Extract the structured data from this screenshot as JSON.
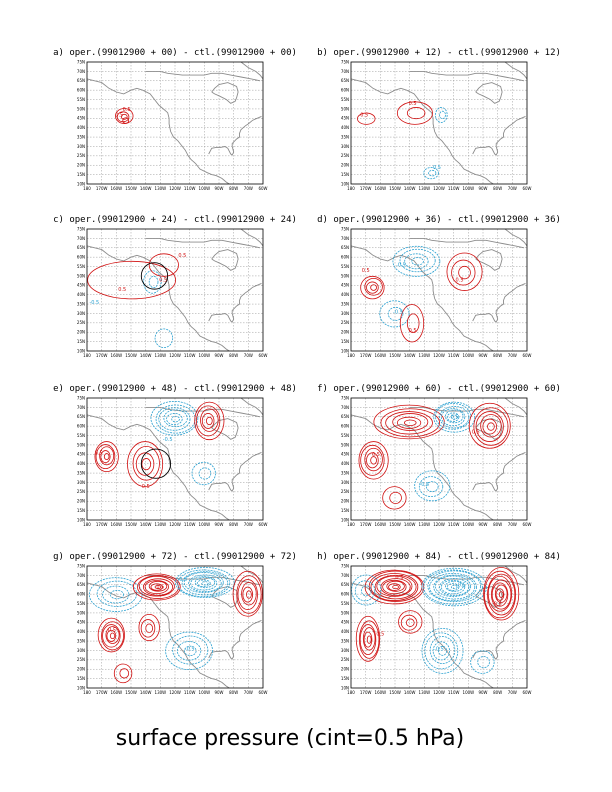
{
  "footer_title": "surface pressure (cint=0.5 hPa)",
  "chart_data": {
    "type": "contour-map",
    "contour_interval": "0.5 hPa",
    "colors": {
      "positive": "#d01010",
      "negative": "#2aa0d0",
      "land": "#8c8c8c",
      "grid": "#9a9a9a",
      "frame": "#000000"
    },
    "x_ticks": [
      "180",
      "170W",
      "160W",
      "150W",
      "140W",
      "130W",
      "120W",
      "110W",
      "100W",
      "90W",
      "80W",
      "70W",
      "60W"
    ],
    "y_ticks": [
      "10N",
      "15N",
      "20N",
      "25N",
      "30N",
      "35N",
      "40N",
      "45N",
      "50N",
      "55N",
      "60N",
      "65N",
      "70N",
      "75N"
    ],
    "lon_range": [
      180,
      60
    ],
    "lat_range": [
      10,
      75
    ],
    "panels": [
      {
        "title": "a) oper.(99012900 + 00) - ctl.(99012900 + 00)",
        "lead_hours": 0,
        "labels": [
          {
            "text": "0.5",
            "sign": "pos",
            "lon": 153,
            "lat": 49
          },
          {
            "text": "0.5",
            "sign": "pos",
            "lon": 158,
            "lat": 46
          }
        ],
        "features": [
          {
            "sign": "pos",
            "lon": 155,
            "lat": 46,
            "rx": 6,
            "ry": 4,
            "rings": 3
          },
          {
            "sign": "pos",
            "lon": 154,
            "lat": 44,
            "rx": 2,
            "ry": 1.5,
            "rings": 1
          }
        ]
      },
      {
        "title": "b) oper.(99012900 + 12) - ctl.(99012900 + 12)",
        "lead_hours": 12,
        "labels": [
          {
            "text": "0.5",
            "sign": "pos",
            "lon": 171,
            "lat": 46
          },
          {
            "text": "0.5",
            "sign": "pos",
            "lon": 138,
            "lat": 52
          },
          {
            "text": "-0.5",
            "sign": "neg",
            "lon": 122,
            "lat": 18
          }
        ],
        "features": [
          {
            "sign": "pos",
            "lon": 170,
            "lat": 45,
            "rx": 6,
            "ry": 3,
            "rings": 1
          },
          {
            "sign": "pos",
            "lon": 136,
            "lat": 48,
            "rx": 12,
            "ry": 6,
            "rings": 2
          },
          {
            "sign": "neg",
            "lon": 118,
            "lat": 47,
            "rx": 4,
            "ry": 4,
            "rings": 2
          },
          {
            "sign": "neg",
            "lon": 125,
            "lat": 16,
            "rx": 5,
            "ry": 3,
            "rings": 2
          }
        ]
      },
      {
        "title": "c) oper.(99012900 + 24) - ctl.(99012900 + 24)",
        "lead_hours": 24,
        "labels": [
          {
            "text": "0.5",
            "sign": "pos",
            "lon": 156,
            "lat": 42
          },
          {
            "text": "0.5",
            "sign": "pos",
            "lon": 115,
            "lat": 60
          },
          {
            "text": "-0.5",
            "sign": "neg",
            "lon": 175,
            "lat": 35
          },
          {
            "text": "0.5",
            "sign": "pos",
            "lon": 128,
            "lat": 47
          }
        ],
        "features": [
          {
            "sign": "pos",
            "lon": 150,
            "lat": 48,
            "rx": 30,
            "ry": 10,
            "rings": 1
          },
          {
            "sign": "neg",
            "lon": 135,
            "lat": 47,
            "rx": 6,
            "ry": 6,
            "rings": 2
          },
          {
            "sign": "pos",
            "lon": 128,
            "lat": 56,
            "rx": 10,
            "ry": 6,
            "rings": 1
          },
          {
            "sign": "neg",
            "lon": 128,
            "lat": 17,
            "rx": 6,
            "ry": 5,
            "rings": 1
          }
        ],
        "circle": {
          "lon": 134,
          "lat": 50,
          "r": 9
        }
      },
      {
        "title": "d) oper.(99012900 + 36) - ctl.(99012900 + 36)",
        "lead_hours": 36,
        "labels": [
          {
            "text": "0.5",
            "sign": "pos",
            "lon": 170,
            "lat": 52
          },
          {
            "text": "-0.5",
            "sign": "neg",
            "lon": 146,
            "lat": 55
          },
          {
            "text": "0.5",
            "sign": "pos",
            "lon": 106,
            "lat": 47
          },
          {
            "text": "-0.5",
            "sign": "neg",
            "lon": 148,
            "lat": 30
          },
          {
            "text": "0.5",
            "sign": "pos",
            "lon": 138,
            "lat": 20
          }
        ],
        "features": [
          {
            "sign": "pos",
            "lon": 165,
            "lat": 44,
            "rx": 8,
            "ry": 6,
            "rings": 4
          },
          {
            "sign": "neg",
            "lon": 135,
            "lat": 58,
            "rx": 16,
            "ry": 8,
            "rings": 4
          },
          {
            "sign": "pos",
            "lon": 103,
            "lat": 52,
            "rx": 12,
            "ry": 10,
            "rings": 3
          },
          {
            "sign": "neg",
            "lon": 150,
            "lat": 30,
            "rx": 10,
            "ry": 7,
            "rings": 2
          },
          {
            "sign": "pos",
            "lon": 138,
            "lat": 25,
            "rx": 8,
            "ry": 10,
            "rings": 2
          }
        ]
      },
      {
        "title": "e) oper.(99012900 + 48) - ctl.(99012900 + 48)",
        "lead_hours": 48,
        "labels": [
          {
            "text": "0.5",
            "sign": "pos",
            "lon": 172,
            "lat": 45
          },
          {
            "text": "-0.5",
            "sign": "neg",
            "lon": 125,
            "lat": 52
          },
          {
            "text": "0.5",
            "sign": "pos",
            "lon": 140,
            "lat": 27
          }
        ],
        "features": [
          {
            "sign": "pos",
            "lon": 167,
            "lat": 44,
            "rx": 8,
            "ry": 8,
            "rings": 5
          },
          {
            "sign": "neg",
            "lon": 120,
            "lat": 64,
            "rx": 16,
            "ry": 9,
            "rings": 6
          },
          {
            "sign": "pos",
            "lon": 97,
            "lat": 63,
            "rx": 10,
            "ry": 10,
            "rings": 5
          },
          {
            "sign": "pos",
            "lon": 140,
            "lat": 40,
            "rx": 12,
            "ry": 12,
            "rings": 4
          },
          {
            "sign": "neg",
            "lon": 100,
            "lat": 35,
            "rx": 8,
            "ry": 6,
            "rings": 2
          }
        ],
        "circle": {
          "lon": 133,
          "lat": 40,
          "r": 10
        }
      },
      {
        "title": "f) oper.(99012900 + 60) - ctl.(99012900 + 60)",
        "lead_hours": 60,
        "labels": [
          {
            "text": "0.5",
            "sign": "pos",
            "lon": 163,
            "lat": 44
          },
          {
            "text": "-0.5",
            "sign": "neg",
            "lon": 110,
            "lat": 64
          },
          {
            "text": "0.5",
            "sign": "pos",
            "lon": 95,
            "lat": 56
          },
          {
            "text": "-0.5",
            "sign": "neg",
            "lon": 130,
            "lat": 28
          }
        ],
        "features": [
          {
            "sign": "pos",
            "lon": 165,
            "lat": 42,
            "rx": 10,
            "ry": 10,
            "rings": 5
          },
          {
            "sign": "pos",
            "lon": 140,
            "lat": 62,
            "rx": 24,
            "ry": 9,
            "rings": 6
          },
          {
            "sign": "neg",
            "lon": 110,
            "lat": 65,
            "rx": 14,
            "ry": 8,
            "rings": 7
          },
          {
            "sign": "pos",
            "lon": 85,
            "lat": 60,
            "rx": 14,
            "ry": 12,
            "rings": 6
          },
          {
            "sign": "neg",
            "lon": 125,
            "lat": 28,
            "rx": 12,
            "ry": 8,
            "rings": 3
          },
          {
            "sign": "pos",
            "lon": 150,
            "lat": 22,
            "rx": 8,
            "ry": 6,
            "rings": 2
          }
        ]
      },
      {
        "title": "g) oper.(99012900 + 72) - ctl.(99012900 + 72)",
        "lead_hours": 72,
        "labels": [
          {
            "text": "0.5",
            "sign": "pos",
            "lon": 163,
            "lat": 40
          },
          {
            "text": "-0.5",
            "sign": "neg",
            "lon": 115,
            "lat": 67
          },
          {
            "text": "0.5",
            "sign": "pos",
            "lon": 130,
            "lat": 63
          },
          {
            "text": "-0.5",
            "sign": "neg",
            "lon": 110,
            "lat": 30
          }
        ],
        "features": [
          {
            "sign": "pos",
            "lon": 163,
            "lat": 38,
            "rx": 9,
            "ry": 9,
            "rings": 6
          },
          {
            "sign": "neg",
            "lon": 160,
            "lat": 60,
            "rx": 18,
            "ry": 9,
            "rings": 4
          },
          {
            "sign": "pos",
            "lon": 132,
            "lat": 64,
            "rx": 16,
            "ry": 7,
            "rings": 8
          },
          {
            "sign": "neg",
            "lon": 100,
            "lat": 66,
            "rx": 20,
            "ry": 8,
            "rings": 9
          },
          {
            "sign": "pos",
            "lon": 70,
            "lat": 60,
            "rx": 10,
            "ry": 12,
            "rings": 6
          },
          {
            "sign": "pos",
            "lon": 138,
            "lat": 42,
            "rx": 7,
            "ry": 7,
            "rings": 3
          },
          {
            "sign": "neg",
            "lon": 110,
            "lat": 30,
            "rx": 16,
            "ry": 10,
            "rings": 4
          },
          {
            "sign": "pos",
            "lon": 155,
            "lat": 18,
            "rx": 6,
            "ry": 5,
            "rings": 2
          }
        ]
      },
      {
        "title": "h) oper.(99012900 + 84) - ctl.(99012900 + 84)",
        "lead_hours": 84,
        "labels": [
          {
            "text": "0.5",
            "sign": "pos",
            "lon": 147,
            "lat": 68
          },
          {
            "text": "-0.5",
            "sign": "neg",
            "lon": 105,
            "lat": 64
          },
          {
            "text": "0.5",
            "sign": "pos",
            "lon": 80,
            "lat": 54
          },
          {
            "text": "0.5",
            "sign": "pos",
            "lon": 160,
            "lat": 38
          },
          {
            "text": "-0.5",
            "sign": "neg",
            "lon": 120,
            "lat": 30
          }
        ],
        "features": [
          {
            "sign": "pos",
            "lon": 150,
            "lat": 64,
            "rx": 20,
            "ry": 9,
            "rings": 10
          },
          {
            "sign": "neg",
            "lon": 110,
            "lat": 64,
            "rx": 22,
            "ry": 10,
            "rings": 11
          },
          {
            "sign": "pos",
            "lon": 78,
            "lat": 60,
            "rx": 12,
            "ry": 14,
            "rings": 9
          },
          {
            "sign": "neg",
            "lon": 170,
            "lat": 62,
            "rx": 10,
            "ry": 8,
            "rings": 3
          },
          {
            "sign": "pos",
            "lon": 168,
            "lat": 36,
            "rx": 8,
            "ry": 12,
            "rings": 6
          },
          {
            "sign": "pos",
            "lon": 140,
            "lat": 45,
            "rx": 8,
            "ry": 6,
            "rings": 3
          },
          {
            "sign": "neg",
            "lon": 118,
            "lat": 30,
            "rx": 14,
            "ry": 12,
            "rings": 5
          },
          {
            "sign": "neg",
            "lon": 90,
            "lat": 24,
            "rx": 8,
            "ry": 6,
            "rings": 2
          }
        ]
      }
    ]
  }
}
